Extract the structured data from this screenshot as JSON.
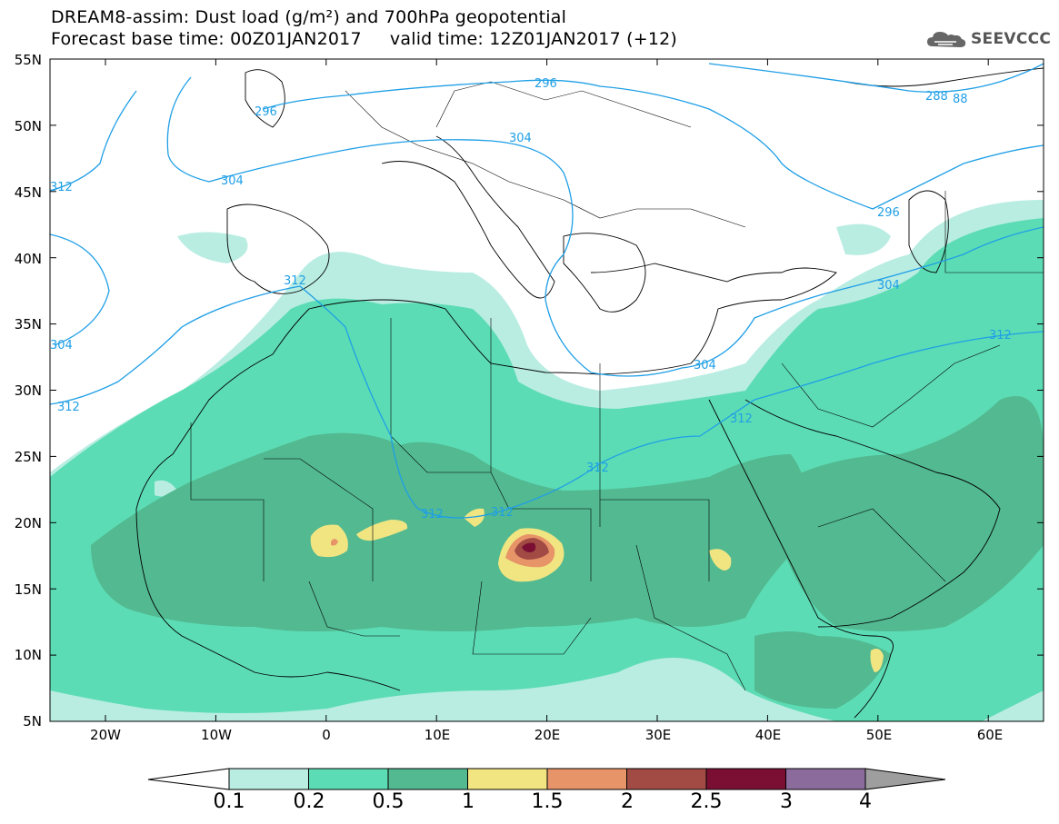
{
  "title": {
    "line1": "DREAM8-assim: Dust load (g/m²) and 700hPa geopotential",
    "line2": "Forecast base time: 00Z01JAN2017     valid time: 12Z01JAN2017 (+12)"
  },
  "logo": {
    "text": "SEEVCCC",
    "icon": "cloud-logo-icon"
  },
  "map": {
    "lat_labels": [
      "55N",
      "50N",
      "45N",
      "40N",
      "35N",
      "30N",
      "25N",
      "20N",
      "15N",
      "10N",
      "5N"
    ],
    "lon_labels": [
      "20W",
      "10W",
      "0",
      "10E",
      "20E",
      "30E",
      "40E",
      "50E",
      "60E"
    ],
    "contour_labels": [
      "296",
      "296",
      "304",
      "312",
      "304",
      "288",
      "88",
      "296",
      "304",
      "312",
      "304",
      "312",
      "312",
      "312",
      "312",
      "312",
      "304",
      "312"
    ]
  },
  "colorbar": {
    "labels": [
      "0.1",
      "0.2",
      "0.5",
      "1",
      "1.5",
      "2",
      "2.5",
      "3",
      "4"
    ],
    "colors": [
      "#b9ede2",
      "#5cdcb4",
      "#52b991",
      "#f1e582",
      "#e79468",
      "#a14b44",
      "#7b0f33",
      "#8a6b9b",
      "#9e9e9e"
    ]
  }
}
